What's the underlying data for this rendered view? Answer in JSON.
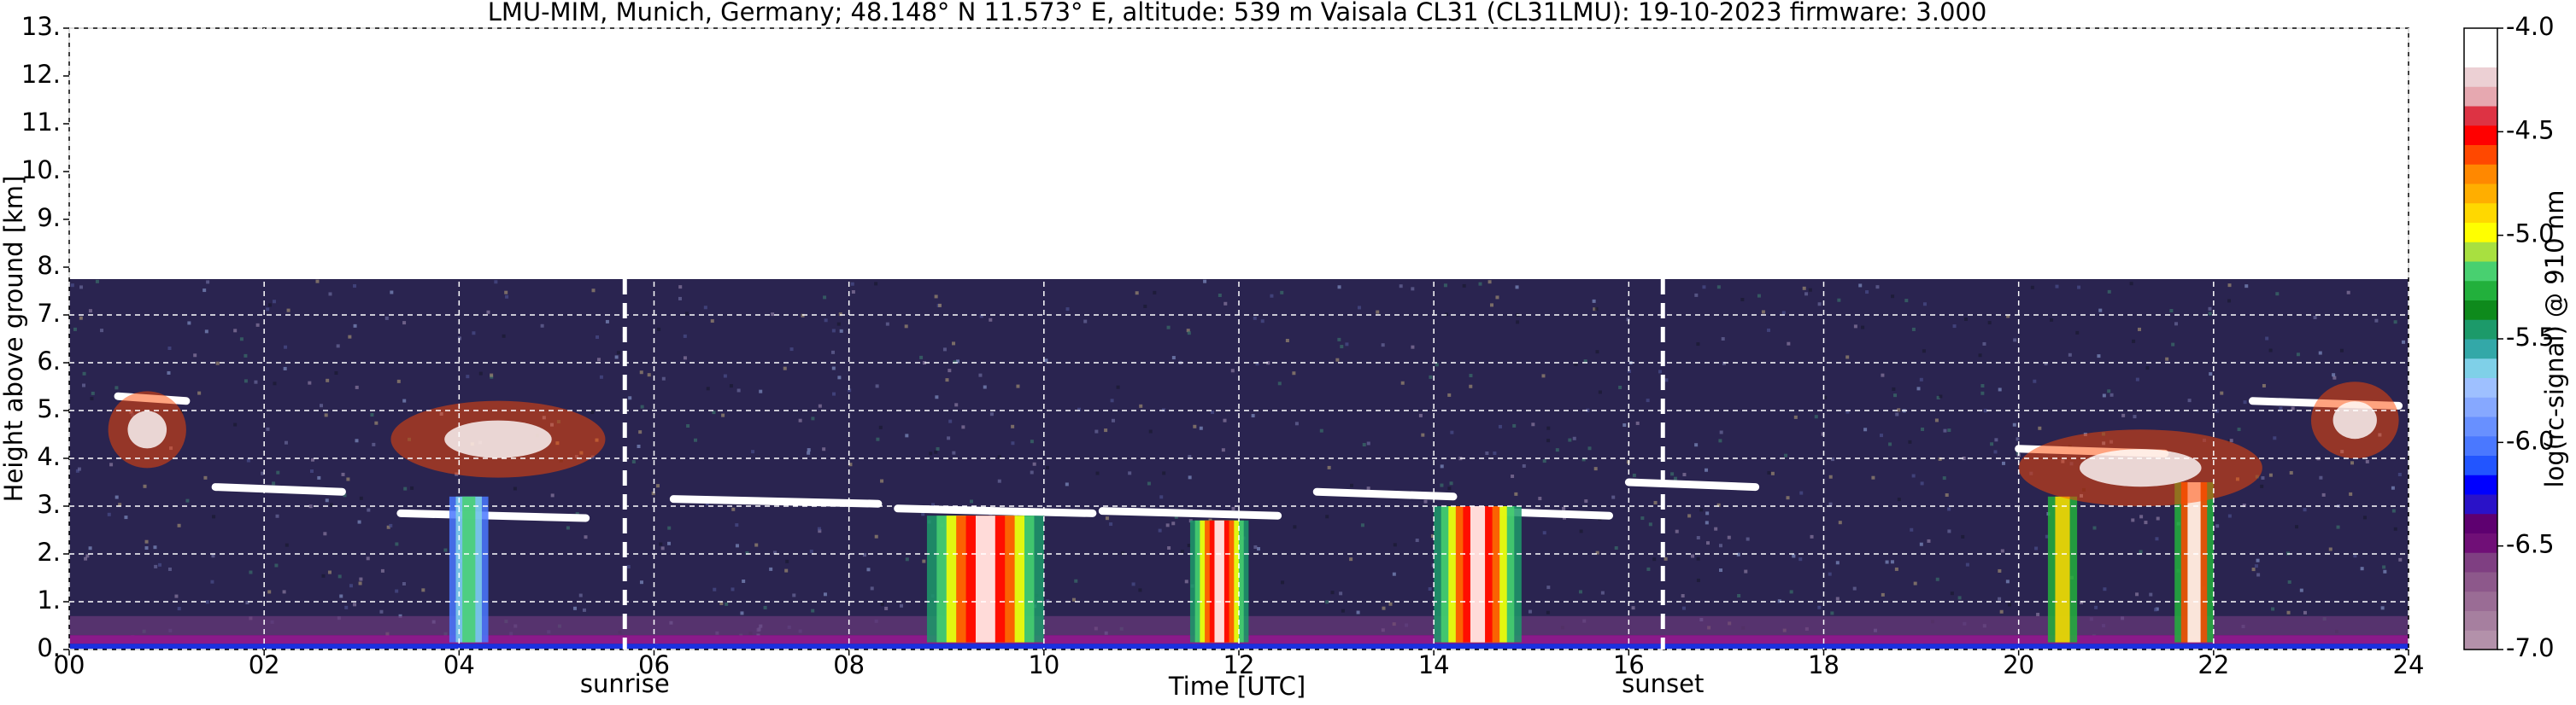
{
  "chart_data": {
    "type": "heatmap",
    "title": "LMU-MIM, Munich, Germany; 48.148° N 11.573° E, altitude: 539 m    Vaisala CL31 (CL31LMU): 19-10-2023    firmware: 3.000",
    "x_label": "Time [UTC]",
    "y_label": "Height above ground [km]",
    "xlim": [
      0,
      24
    ],
    "xticks": [
      {
        "value": 0,
        "label": "00"
      },
      {
        "value": 2,
        "label": "02"
      },
      {
        "value": 4,
        "label": "04"
      },
      {
        "value": 6,
        "label": "06"
      },
      {
        "value": 8,
        "label": "08"
      },
      {
        "value": 10,
        "label": "10"
      },
      {
        "value": 12,
        "label": "12"
      },
      {
        "value": 14,
        "label": "14"
      },
      {
        "value": 16,
        "label": "16"
      },
      {
        "value": 18,
        "label": "18"
      },
      {
        "value": 20,
        "label": "20"
      },
      {
        "value": 22,
        "label": "22"
      },
      {
        "value": 24,
        "label": "24"
      }
    ],
    "ylim": [
      0,
      13
    ],
    "yticks": [
      {
        "value": 0,
        "label": "0."
      },
      {
        "value": 1,
        "label": "1."
      },
      {
        "value": 2,
        "label": "2."
      },
      {
        "value": 3,
        "label": "3."
      },
      {
        "value": 4,
        "label": "4."
      },
      {
        "value": 5,
        "label": "5."
      },
      {
        "value": 6,
        "label": "6."
      },
      {
        "value": 7,
        "label": "7."
      },
      {
        "value": 8,
        "label": "8."
      },
      {
        "value": 9,
        "label": "9."
      },
      {
        "value": 10,
        "label": "10."
      },
      {
        "value": 11,
        "label": "11."
      },
      {
        "value": 12,
        "label": "12."
      },
      {
        "value": 13,
        "label": "13."
      }
    ],
    "grid": true,
    "annotations": [
      {
        "x": 5.7,
        "label": "sunrise"
      },
      {
        "x": 16.35,
        "label": "sunset"
      }
    ],
    "colorbar": {
      "label": "log(rc-signal) @ 910 nm",
      "lim": [
        -7,
        -4
      ],
      "ticks": [
        {
          "value": -4,
          "label": "-4.0"
        },
        {
          "value": -4.5,
          "label": "-4.5"
        },
        {
          "value": -5,
          "label": "-5.0"
        },
        {
          "value": -5.5,
          "label": "-5.5"
        },
        {
          "value": -6,
          "label": "-6.0"
        },
        {
          "value": -6.5,
          "label": "-6.5"
        },
        {
          "value": -7,
          "label": "-7.0"
        }
      ],
      "colors": [
        "#b391aa",
        "#a67f9f",
        "#9a6c95",
        "#8d588b",
        "#7f3f82",
        "#700f77",
        "#5e0070",
        "#2a12c8",
        "#0000ff",
        "#2255ff",
        "#4a78ff",
        "#6890ff",
        "#86a8ff",
        "#9ec0ff",
        "#7fd0e8",
        "#33a8a8",
        "#1c9a6a",
        "#0e8a1c",
        "#22b03c",
        "#48d070",
        "#a8e040",
        "#ffff00",
        "#ffd800",
        "#ffae00",
        "#ff8800",
        "#ff4800",
        "#ff0000",
        "#dd3344",
        "#e6a8b0",
        "#ecd0d4",
        "#ffffff",
        "#ffffff"
      ]
    }
  }
}
